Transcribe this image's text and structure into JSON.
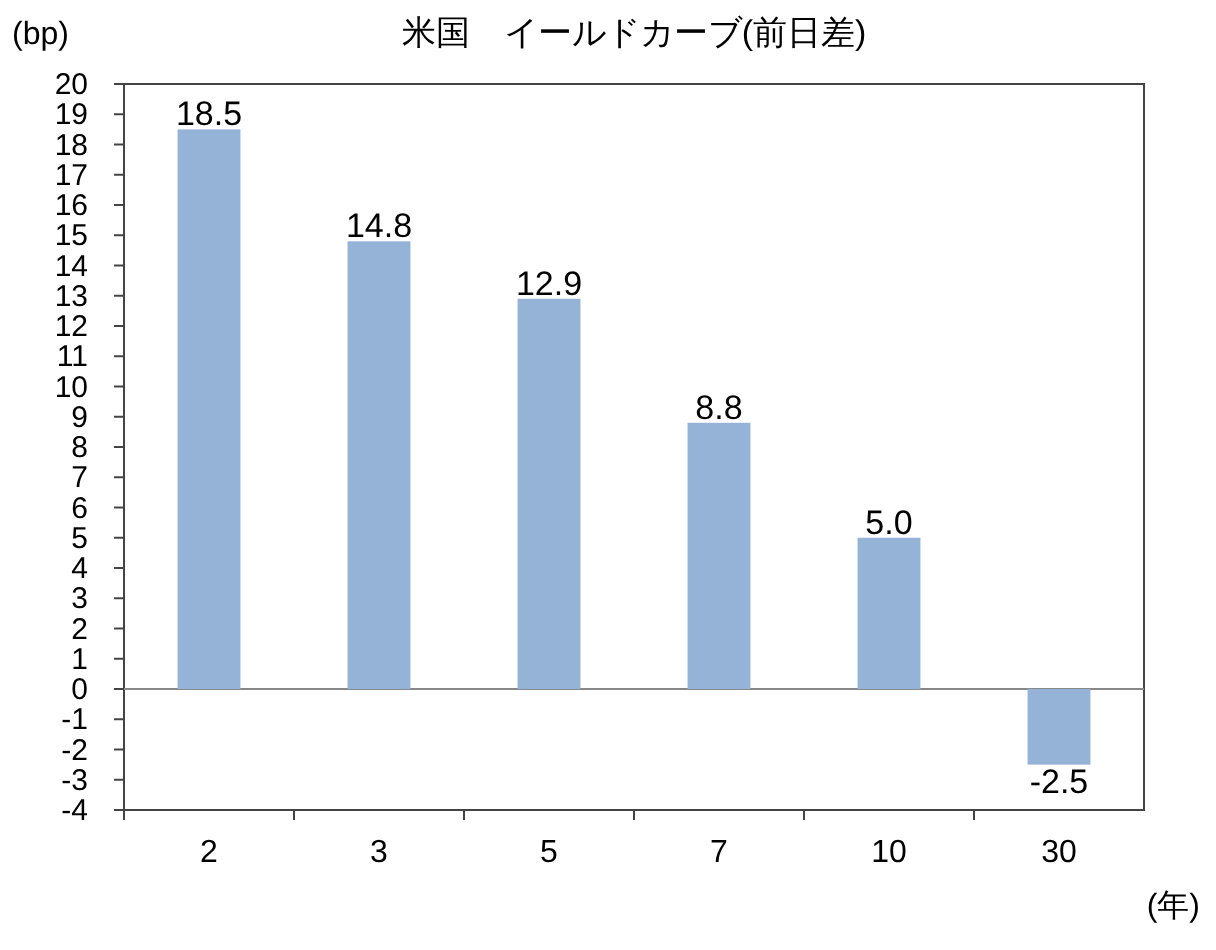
{
  "chart_data": {
    "type": "bar",
    "title": "米国　イールドカーブ(前日差)",
    "ylabel": "(bp)",
    "xlabel": "(年)",
    "categories": [
      "2",
      "3",
      "5",
      "7",
      "10",
      "30"
    ],
    "values": [
      18.5,
      14.8,
      12.9,
      8.8,
      5.0,
      -2.5
    ],
    "value_labels": [
      "18.5",
      "14.8",
      "12.9",
      "8.8",
      "5.0",
      "-2.5"
    ],
    "color": "#95b3d7",
    "ylim": [
      -4,
      20
    ],
    "yticks": [
      -4,
      -3,
      -2,
      -1,
      0,
      1,
      2,
      3,
      4,
      5,
      6,
      7,
      8,
      9,
      10,
      11,
      12,
      13,
      14,
      15,
      16,
      17,
      18,
      19,
      20
    ],
    "data_labels": true
  }
}
